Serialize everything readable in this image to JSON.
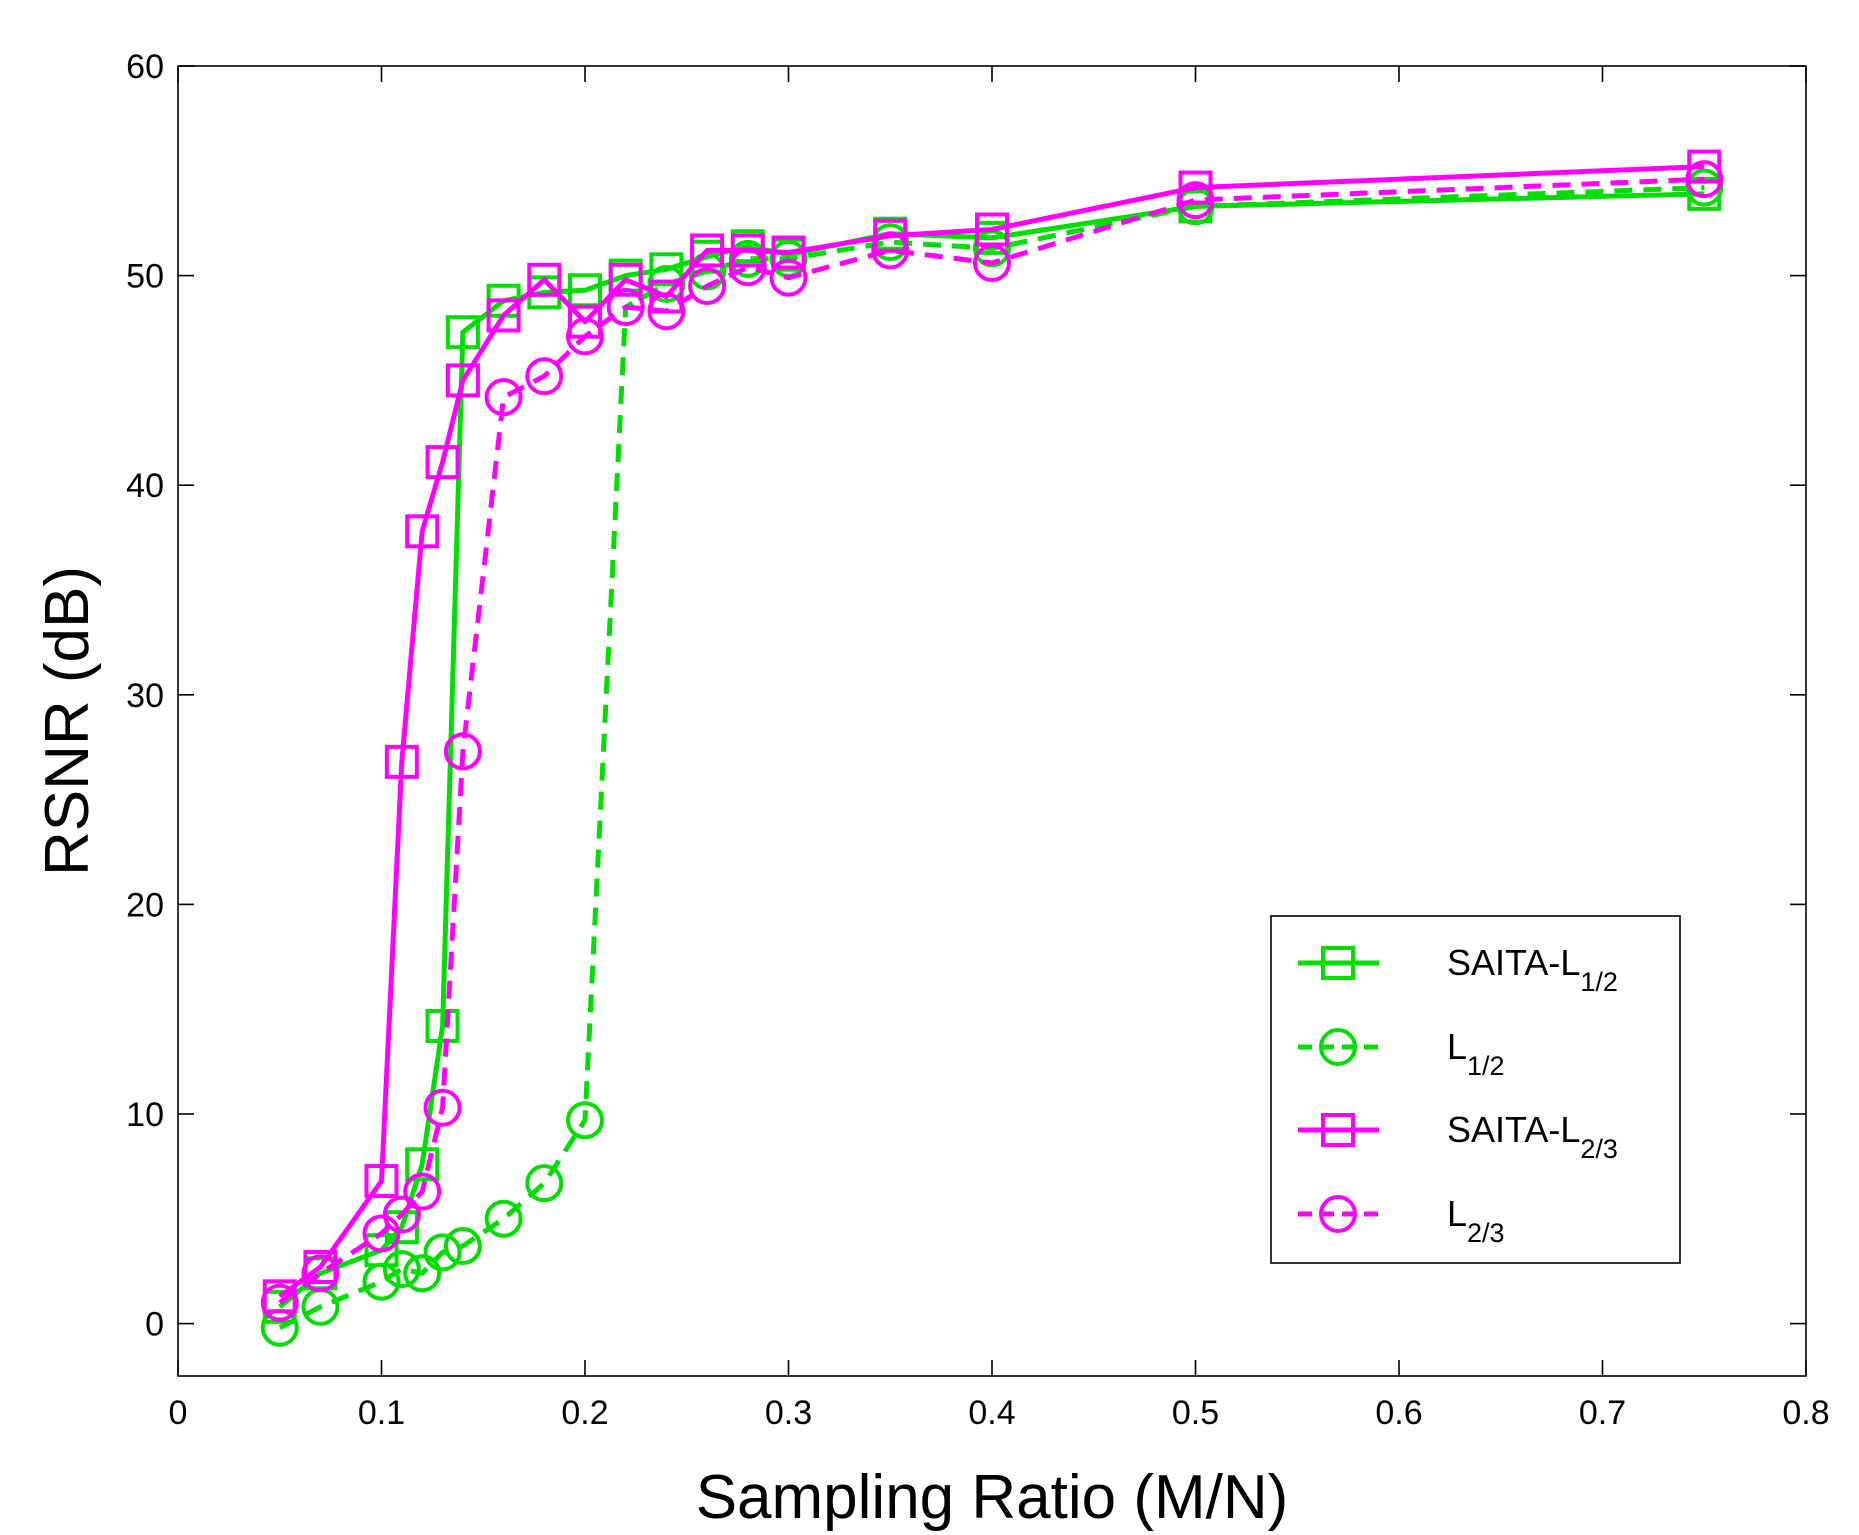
{
  "chart_data": {
    "type": "line",
    "title": "",
    "xlabel": "Sampling Ratio (M/N)",
    "ylabel": "RSNR (dB)",
    "xlim": [
      0,
      0.8
    ],
    "ylim": [
      -2.5,
      60
    ],
    "xticks": [
      0,
      0.1,
      0.2,
      0.3,
      0.4,
      0.5,
      0.6,
      0.7,
      0.8
    ],
    "yticks": [
      0,
      10,
      20,
      30,
      40,
      50,
      60
    ],
    "xtick_labels": [
      "0",
      "0.1",
      "0.2",
      "0.3",
      "0.4",
      "0.5",
      "0.6",
      "0.7",
      "0.8"
    ],
    "ytick_labels": [
      "0",
      "10",
      "20",
      "30",
      "40",
      "50",
      "60"
    ],
    "grid": false,
    "legend_position": "bottom-right",
    "series": [
      {
        "name": "SAITA-L1/2",
        "legend_main": "SAITA-L",
        "legend_sub": "1/2",
        "color": "#00dd00",
        "dash": "solid",
        "marker": "square",
        "x": [
          0.05,
          0.07,
          0.1,
          0.11,
          0.12,
          0.13,
          0.14,
          0.16,
          0.18,
          0.2,
          0.22,
          0.24,
          0.26,
          0.28,
          0.3,
          0.35,
          0.4,
          0.5,
          0.75
        ],
        "y": [
          0.8,
          2.4,
          3.5,
          4.6,
          7.6,
          14.2,
          47.3,
          48.8,
          49.2,
          49.3,
          50.0,
          50.3,
          50.9,
          51.4,
          51.0,
          52.0,
          51.8,
          53.3,
          53.9
        ]
      },
      {
        "name": "L1/2",
        "legend_main": "L",
        "legend_sub": "1/2",
        "color": "#00dd00",
        "dash": "dashed",
        "marker": "circle",
        "x": [
          0.05,
          0.07,
          0.1,
          0.11,
          0.12,
          0.13,
          0.14,
          0.16,
          0.18,
          0.2,
          0.22,
          0.24,
          0.26,
          0.28,
          0.3,
          0.35,
          0.4,
          0.5,
          0.75
        ],
        "y": [
          -0.2,
          0.8,
          2.0,
          2.6,
          2.4,
          3.4,
          3.7,
          5.0,
          6.7,
          9.7,
          48.5,
          49.6,
          50.2,
          50.8,
          50.8,
          51.6,
          51.3,
          53.3,
          54.2
        ]
      },
      {
        "name": "SAITA-L2/3",
        "legend_main": "SAITA-L",
        "legend_sub": "2/3",
        "color": "#ff00ff",
        "dash": "solid",
        "marker": "square",
        "x": [
          0.05,
          0.07,
          0.1,
          0.11,
          0.12,
          0.13,
          0.14,
          0.16,
          0.18,
          0.2,
          0.22,
          0.24,
          0.26,
          0.28,
          0.3,
          0.35,
          0.4,
          0.5,
          0.75
        ],
        "y": [
          1.3,
          2.7,
          6.8,
          26.8,
          37.8,
          41.1,
          45.0,
          48.1,
          49.8,
          47.8,
          49.8,
          49.0,
          51.2,
          51.2,
          51.1,
          51.9,
          52.2,
          54.2,
          55.2
        ]
      },
      {
        "name": "L2/3",
        "legend_main": "L",
        "legend_sub": "2/3",
        "color": "#ff00ff",
        "dash": "dashed",
        "marker": "circle",
        "x": [
          0.05,
          0.07,
          0.1,
          0.11,
          0.12,
          0.13,
          0.14,
          0.16,
          0.18,
          0.2,
          0.22,
          0.24,
          0.26,
          0.28,
          0.3,
          0.35,
          0.4,
          0.5,
          0.75
        ],
        "y": [
          1.0,
          2.4,
          4.3,
          5.2,
          6.3,
          10.3,
          27.3,
          44.2,
          45.2,
          47.1,
          48.5,
          48.3,
          49.5,
          50.4,
          49.9,
          51.2,
          50.6,
          53.6,
          54.6
        ]
      }
    ]
  }
}
